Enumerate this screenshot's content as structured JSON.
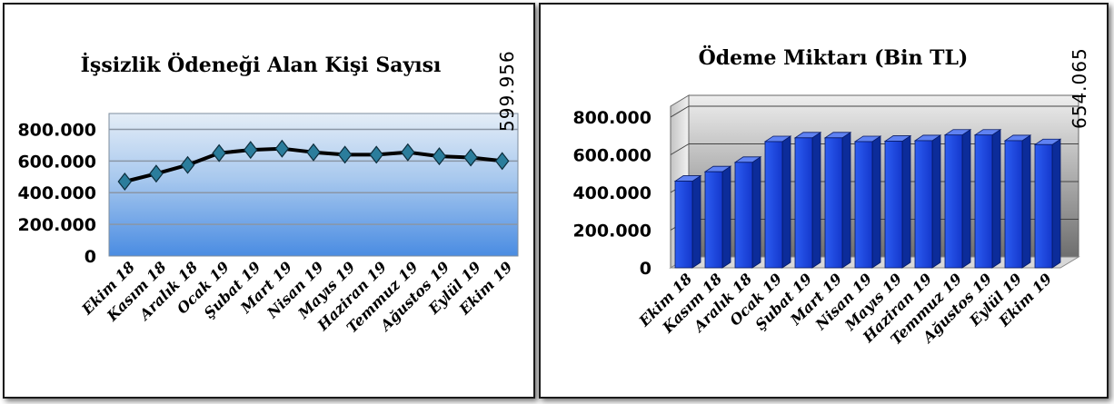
{
  "chart_data": [
    {
      "type": "line",
      "title": "İşsizlik Ödeneği Alan Kişi Sayısı",
      "categories": [
        "Ekim 18",
        "Kasım 18",
        "Aralık 18",
        "Ocak 19",
        "Şubat 19",
        "Mart 19",
        "Nisan 19",
        "Mayıs 19",
        "Haziran 19",
        "Temmuz 19",
        "Ağustos 19",
        "Eylül 19",
        "Ekim 19"
      ],
      "values": [
        470000,
        520000,
        575000,
        650000,
        670000,
        678000,
        655000,
        640000,
        640000,
        655000,
        630000,
        622000,
        599956
      ],
      "ylim": [
        0,
        900000
      ],
      "yticks": [
        "0",
        "200.000",
        "400.000",
        "600.000",
        "800.000"
      ],
      "yticks_values": [
        0,
        200000,
        400000,
        600000,
        800000
      ],
      "data_label": "599.956",
      "grid": true,
      "colors": {
        "line": "#000000",
        "marker": "#2b7d9c",
        "plot_top": "#dfeaf6",
        "plot_bottom": "#4d8fe0"
      }
    },
    {
      "type": "bar",
      "title": "Ödeme Miktarı (Bin TL)",
      "categories": [
        "Ekim 18",
        "Kasım 18",
        "Aralık 18",
        "Ocak 19",
        "Şubat 19",
        "Mart 19",
        "Nisan 19",
        "Mayıs 19",
        "Haziran 19",
        "Temmuz 19",
        "Ağustos 19",
        "Eylül 19",
        "Ekim 19"
      ],
      "values": [
        460000,
        510000,
        560000,
        670000,
        690000,
        690000,
        670000,
        672000,
        675000,
        705000,
        705000,
        675000,
        654065
      ],
      "ylim": [
        0,
        800000
      ],
      "yticks": [
        "0",
        "200.000",
        "400.000",
        "600.000",
        "800.000"
      ],
      "yticks_values": [
        0,
        200000,
        400000,
        600000,
        800000
      ],
      "data_label": "654.065",
      "grid": true,
      "colors": {
        "bar_front": "#1a4fe8",
        "bar_side": "#0c2c9a",
        "bar_top": "#5f82f2"
      }
    }
  ]
}
